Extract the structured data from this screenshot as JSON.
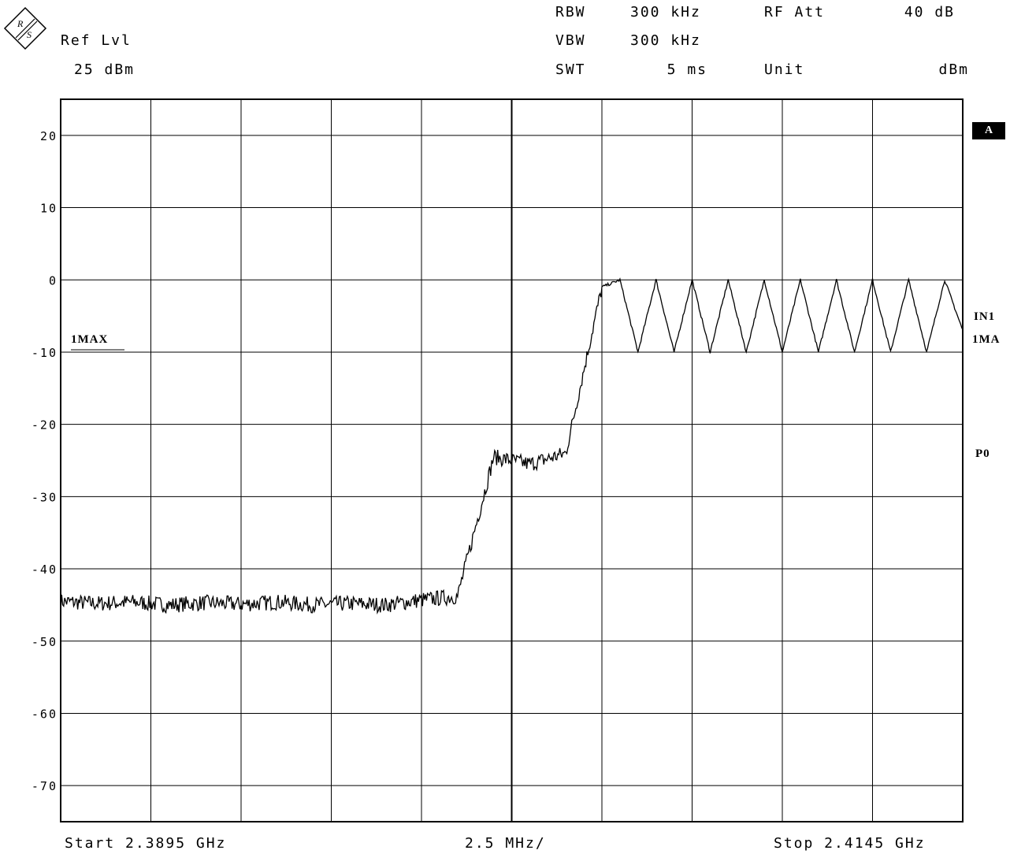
{
  "header": {
    "ref_lvl_label": "Ref Lvl",
    "ref_lvl_value": "25 dBm",
    "rbw_label": "RBW",
    "rbw_value": "300 kHz",
    "vbw_label": "VBW",
    "vbw_value": "300 kHz",
    "swt_label": "SWT",
    "swt_value": "5 ms",
    "rf_att_label": "RF Att",
    "rf_att_value": "40 dB",
    "unit_label": "Unit",
    "unit_value": "dBm"
  },
  "footer": {
    "start": "Start 2.3895 GHz",
    "span_div": "2.5 MHz/",
    "stop": "Stop 2.4145 GHz"
  },
  "side_labels": {
    "a_box": "A",
    "in1": "IN1",
    "ma1": "1MA",
    "p0": "P0",
    "trace_label": "1MAX"
  },
  "logo": {
    "text": "R&S",
    "icon": "rohde-schwarz-logo-icon"
  },
  "chart_data": {
    "type": "line",
    "xlabel": "",
    "ylabel": "",
    "xlim": [
      2.3895,
      2.4145
    ],
    "ylim": [
      -75,
      25
    ],
    "y_ticks": [
      20,
      10,
      0,
      -10,
      -20,
      -30,
      -40,
      -50,
      -60,
      -70
    ],
    "x_divisions": 10,
    "grid": true,
    "series": [
      {
        "name": "1MAX",
        "x": [
          2.3895,
          2.3905,
          2.3915,
          2.3925,
          2.3935,
          2.3945,
          2.3955,
          2.3965,
          2.3975,
          2.3985,
          2.3995,
          2.4005,
          2.4015,
          2.4025,
          2.4035,
          2.4045,
          2.405,
          2.4055,
          2.406,
          2.4065,
          2.407,
          2.4075,
          2.408,
          2.4085,
          2.409,
          2.4095,
          2.41,
          2.4105,
          2.411,
          2.4115,
          2.412,
          2.4125,
          2.413,
          2.4135,
          2.414,
          2.4145
        ],
        "values": [
          -44.5,
          -44.8,
          -44.6,
          -45.0,
          -44.7,
          -44.9,
          -44.6,
          -45.0,
          -44.8,
          -45.0,
          -44.3,
          -43.8,
          -24.5,
          -25.5,
          -24.0,
          -1.0,
          0.0,
          -10.0,
          0.0,
          -10.0,
          0.0,
          -10.0,
          0.0,
          -10.0,
          0.0,
          -10.0,
          0.0,
          -10.0,
          0.0,
          -10.0,
          0.0,
          -10.0,
          0.0,
          -10.0,
          0.0,
          -7.0
        ],
        "color": "#000000"
      }
    ]
  }
}
